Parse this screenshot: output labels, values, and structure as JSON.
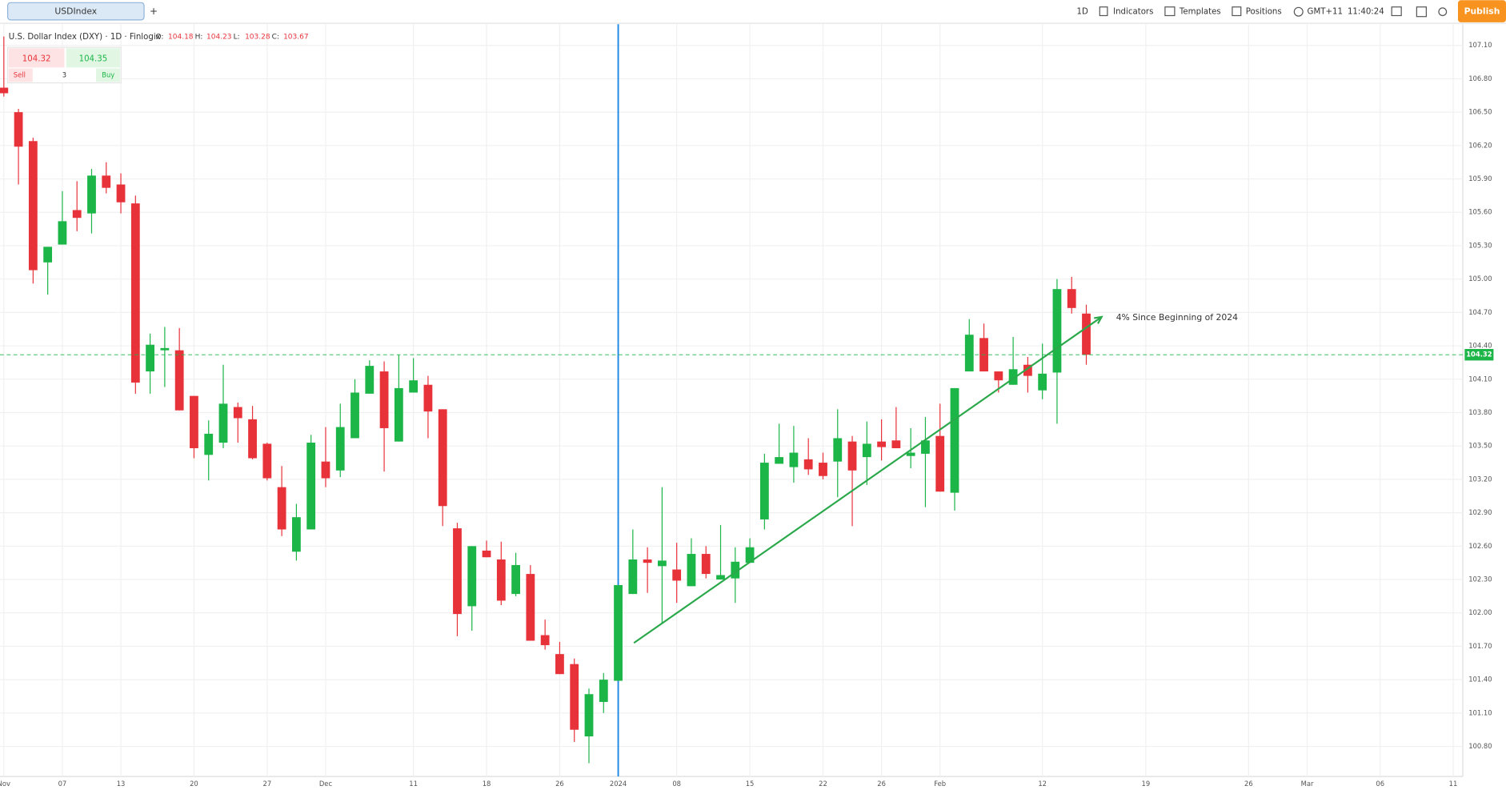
{
  "toolbar": {
    "symbol_tab": "USDIndex",
    "add_tab": "+",
    "interval": "1D",
    "indicators": "Indicators",
    "templates": "Templates",
    "positions": "Positions",
    "timezone": "GMT+11",
    "time": "11:40:24",
    "publish": "Publish"
  },
  "legend": {
    "name": "U.S. Dollar Index (DXY) · 1D · Finlogix",
    "open_label": "O:",
    "open": 104.18,
    "high_label": "H:",
    "high": 104.23,
    "low_label": "L:",
    "low": 103.28,
    "close_label": "C:",
    "close": 103.67
  },
  "trade": {
    "sell_price": 104.32,
    "buy_price": 104.35,
    "sell": "Sell",
    "quantity": 3,
    "buy": "Buy"
  },
  "chart_data": {
    "type": "candlestick",
    "categories": [
      "Nov",
      null,
      null,
      null,
      "07",
      null,
      null,
      null,
      "13",
      null,
      null,
      null,
      null,
      "20",
      null,
      null,
      null,
      null,
      "27",
      null,
      null,
      null,
      "Dec",
      null,
      null,
      null,
      null,
      null,
      "11",
      null,
      null,
      null,
      null,
      "18",
      null,
      null,
      null,
      null,
      "26",
      null,
      null,
      null,
      "2024",
      null,
      null,
      null,
      "08",
      null,
      null,
      null,
      null,
      "15",
      null,
      null,
      null,
      null,
      "22",
      null,
      null,
      null,
      "26",
      null,
      null,
      null,
      "Feb",
      null,
      null,
      null,
      null,
      null,
      null,
      "12",
      null,
      null,
      null
    ],
    "future_labels": [
      "19",
      "26",
      "Mar",
      "06",
      "11"
    ],
    "open": [
      106.72,
      106.5,
      106.24,
      105.15,
      105.31,
      105.62,
      105.59,
      105.93,
      105.85,
      105.68,
      104.17,
      104.36,
      104.36,
      103.95,
      103.42,
      103.53,
      103.85,
      103.74,
      103.52,
      103.13,
      102.55,
      102.75,
      103.36,
      103.28,
      103.57,
      103.97,
      104.17,
      103.54,
      103.98,
      104.05,
      103.83,
      102.76,
      102.06,
      102.56,
      102.48,
      102.17,
      102.35,
      101.8,
      101.63,
      101.54,
      100.89,
      101.2,
      101.39,
      102.17,
      102.48,
      102.42,
      102.39,
      102.24,
      102.53,
      102.3,
      102.31,
      102.45,
      102.84,
      103.34,
      103.31,
      103.38,
      103.35,
      103.36,
      103.54,
      103.4,
      103.54,
      103.55,
      103.41,
      103.43,
      103.59,
      103.08,
      104.17,
      104.47,
      104.17,
      104.05,
      104.23,
      104.0,
      104.16,
      104.91,
      104.69
    ],
    "high": [
      107.18,
      106.53,
      106.27,
      105.29,
      105.79,
      105.88,
      105.99,
      106.05,
      105.95,
      105.75,
      104.51,
      104.57,
      104.56,
      103.95,
      103.73,
      104.23,
      103.89,
      103.86,
      103.53,
      103.32,
      102.98,
      103.6,
      103.67,
      103.88,
      104.1,
      104.27,
      104.26,
      104.32,
      104.29,
      104.13,
      103.83,
      102.81,
      102.6,
      102.65,
      102.64,
      102.54,
      102.43,
      101.94,
      101.74,
      101.59,
      101.32,
      101.46,
      102.25,
      102.75,
      102.59,
      103.13,
      102.63,
      102.67,
      102.6,
      102.79,
      102.59,
      102.67,
      103.43,
      103.7,
      103.68,
      103.57,
      103.44,
      103.83,
      103.59,
      103.72,
      103.74,
      103.85,
      103.66,
      103.76,
      103.88,
      104.02,
      104.64,
      104.6,
      104.17,
      104.48,
      104.3,
      104.42,
      105.0,
      105.02,
      104.77
    ],
    "low": [
      106.64,
      105.85,
      104.96,
      104.86,
      105.31,
      105.43,
      105.41,
      105.77,
      105.59,
      103.97,
      103.97,
      104.03,
      103.82,
      103.39,
      103.19,
      103.48,
      103.53,
      103.38,
      103.19,
      102.69,
      102.47,
      102.75,
      103.13,
      103.22,
      103.57,
      103.97,
      103.27,
      103.54,
      103.98,
      103.57,
      102.78,
      101.79,
      101.84,
      102.5,
      102.07,
      102.15,
      101.75,
      101.67,
      101.45,
      100.84,
      100.65,
      101.1,
      101.39,
      102.17,
      102.18,
      101.91,
      102.09,
      102.24,
      102.31,
      102.3,
      102.09,
      102.45,
      102.75,
      103.34,
      103.17,
      103.24,
      103.2,
      103.04,
      102.78,
      103.15,
      103.37,
      103.48,
      103.3,
      102.95,
      103.09,
      102.92,
      104.17,
      104.17,
      103.98,
      104.05,
      103.98,
      103.92,
      103.7,
      104.69,
      104.23
    ],
    "close": [
      106.67,
      106.19,
      105.08,
      105.29,
      105.52,
      105.55,
      105.93,
      105.82,
      105.69,
      104.07,
      104.41,
      104.38,
      103.82,
      103.48,
      103.61,
      103.88,
      103.75,
      103.39,
      103.21,
      102.75,
      102.86,
      103.53,
      103.21,
      103.67,
      103.98,
      104.22,
      103.66,
      104.02,
      104.09,
      103.81,
      102.96,
      101.99,
      102.6,
      102.5,
      102.11,
      102.43,
      101.75,
      101.71,
      101.45,
      100.95,
      101.27,
      101.4,
      102.25,
      102.48,
      102.45,
      102.47,
      102.29,
      102.53,
      102.35,
      102.34,
      102.46,
      102.59,
      103.35,
      103.4,
      103.44,
      103.29,
      103.23,
      103.57,
      103.28,
      103.52,
      103.49,
      103.48,
      103.44,
      103.55,
      103.09,
      104.02,
      104.5,
      104.17,
      104.09,
      104.19,
      104.13,
      104.15,
      104.91,
      104.74,
      104.32
    ],
    "up_color": "#1cb548",
    "down_color": "#e8323a",
    "ylim": [
      100.53,
      107.29
    ],
    "yticks": [
      {
        "value": 107.1,
        "label": "107.10"
      },
      {
        "value": 106.8,
        "label": "106.80"
      },
      {
        "value": 106.5,
        "label": "106.50"
      },
      {
        "value": 106.2,
        "label": "106.20"
      },
      {
        "value": 105.9,
        "label": "105.90"
      },
      {
        "value": 105.6,
        "label": "105.60"
      },
      {
        "value": 105.3,
        "label": "105.30"
      },
      {
        "value": 105.0,
        "label": "105.00"
      },
      {
        "value": 104.7,
        "label": "104.70"
      },
      {
        "value": 104.4,
        "label": "104.40"
      },
      {
        "value": 104.1,
        "label": "104.10"
      },
      {
        "value": 103.8,
        "label": "103.80"
      },
      {
        "value": 103.5,
        "label": "103.50"
      },
      {
        "value": 103.2,
        "label": "103.20"
      },
      {
        "value": 102.9,
        "label": "102.90"
      },
      {
        "value": 102.6,
        "label": "102.60"
      },
      {
        "value": 102.3,
        "label": "102.30"
      },
      {
        "value": 102.0,
        "label": "102.00"
      },
      {
        "value": 101.7,
        "label": "101.70"
      },
      {
        "value": 101.4,
        "label": "101.40"
      },
      {
        "value": 101.1,
        "label": "101.10"
      },
      {
        "value": 100.8,
        "label": "100.80"
      }
    ],
    "grid": true,
    "last_price": 104.32,
    "last_price_color": "#1cb548",
    "trend_line": {
      "start": 101.73,
      "end": 104.66,
      "color": "#2aa84a"
    },
    "annotation": "4% Since Beginning of 2024"
  }
}
